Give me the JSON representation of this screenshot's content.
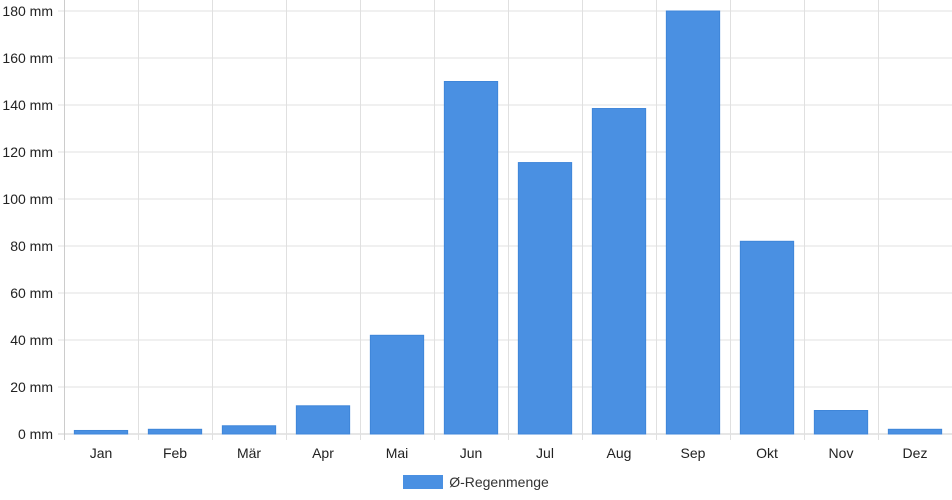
{
  "chart_data": {
    "type": "bar",
    "categories": [
      "Jan",
      "Feb",
      "Mär",
      "Apr",
      "Mai",
      "Jun",
      "Jul",
      "Aug",
      "Sep",
      "Okt",
      "Nov",
      "Dez"
    ],
    "series": [
      {
        "name": "Ø-Regenmenge",
        "values": [
          1.5,
          2,
          3.5,
          12,
          42,
          150,
          115.5,
          138.5,
          180,
          82,
          10,
          2
        ],
        "color": "#4a90e2"
      }
    ],
    "title": "",
    "xlabel": "",
    "ylabel": "",
    "ylim": [
      0,
      180
    ],
    "yticks": [
      "0 mm",
      "20 mm",
      "40 mm",
      "60 mm",
      "80 mm",
      "100 mm",
      "120 mm",
      "140 mm",
      "160 mm",
      "180 mm"
    ],
    "grid": true,
    "legend_position": "bottom-center",
    "colors": {
      "grid": "#e0e0e0",
      "axis": "#cccccc",
      "bar": "#4a90e2"
    }
  }
}
